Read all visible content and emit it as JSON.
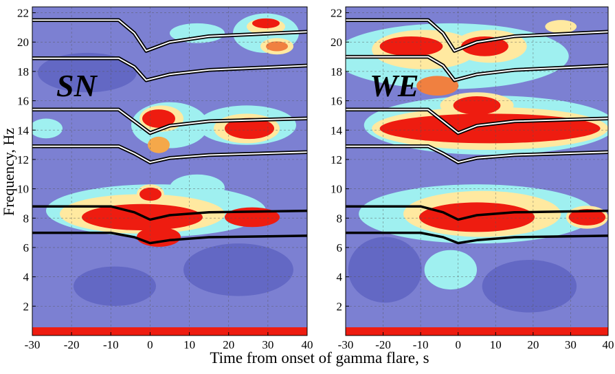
{
  "chart_data": [
    {
      "type": "line",
      "label": "SN",
      "xlim": [
        -30,
        40
      ],
      "ylim": [
        0,
        22.4
      ],
      "xticks": [
        -30,
        -20,
        -10,
        0,
        10,
        20,
        30,
        40
      ],
      "yticks": [
        2,
        4,
        6,
        8,
        10,
        12,
        14,
        16,
        18,
        20,
        22
      ],
      "grid": true,
      "series": [
        {
          "color": "#000000",
          "style": "double",
          "x": [
            -30,
            -8,
            -4,
            -1,
            5,
            15,
            40
          ],
          "values": [
            21.5,
            21.5,
            20.6,
            19.4,
            20.0,
            20.4,
            20.7
          ]
        },
        {
          "color": "#000000",
          "style": "double",
          "x": [
            -30,
            -8,
            -4,
            -1,
            5,
            15,
            40
          ],
          "values": [
            18.9,
            18.9,
            18.3,
            17.4,
            17.8,
            18.1,
            18.4
          ]
        },
        {
          "color": "#000000",
          "style": "double",
          "x": [
            -30,
            -8,
            -4,
            0,
            5,
            15,
            40
          ],
          "values": [
            15.4,
            15.4,
            14.6,
            13.8,
            14.3,
            14.6,
            14.8
          ]
        },
        {
          "color": "#000000",
          "style": "double",
          "x": [
            -30,
            -8,
            -4,
            0,
            5,
            15,
            40
          ],
          "values": [
            12.9,
            12.9,
            12.4,
            11.8,
            12.1,
            12.3,
            12.5
          ]
        },
        {
          "color": "#000000",
          "style": "solid",
          "x": [
            -30,
            -10,
            -4,
            0,
            5,
            15,
            40
          ],
          "values": [
            8.8,
            8.8,
            8.4,
            7.9,
            8.2,
            8.4,
            8.5
          ]
        },
        {
          "color": "#000000",
          "style": "solid",
          "x": [
            -30,
            -10,
            -4,
            0,
            5,
            15,
            40
          ],
          "values": [
            7.0,
            7.0,
            6.7,
            6.3,
            6.5,
            6.7,
            6.8
          ]
        }
      ]
    },
    {
      "type": "line",
      "label": "WE",
      "xlim": [
        -30,
        40
      ],
      "ylim": [
        0,
        22.4
      ],
      "xticks": [
        -30,
        -20,
        -10,
        0,
        10,
        20,
        30,
        40
      ],
      "yticks": [
        2,
        4,
        6,
        8,
        10,
        12,
        14,
        16,
        18,
        20,
        22
      ],
      "grid": true,
      "series": [
        {
          "color": "#000000",
          "style": "double",
          "x": [
            -30,
            -8,
            -4,
            -1,
            5,
            15,
            40
          ],
          "values": [
            21.5,
            21.5,
            20.6,
            19.4,
            20.0,
            20.4,
            20.7
          ]
        },
        {
          "color": "#000000",
          "style": "double",
          "x": [
            -30,
            -8,
            -4,
            -1,
            5,
            15,
            40
          ],
          "values": [
            19.0,
            19.0,
            18.4,
            17.4,
            17.8,
            18.1,
            18.4
          ]
        },
        {
          "color": "#000000",
          "style": "double",
          "x": [
            -30,
            -8,
            -4,
            0,
            5,
            15,
            40
          ],
          "values": [
            15.4,
            15.4,
            14.6,
            13.8,
            14.3,
            14.6,
            14.8
          ]
        },
        {
          "color": "#000000",
          "style": "double",
          "x": [
            -30,
            -8,
            -4,
            0,
            5,
            15,
            40
          ],
          "values": [
            12.9,
            12.9,
            12.4,
            11.8,
            12.1,
            12.3,
            12.5
          ]
        },
        {
          "color": "#000000",
          "style": "solid",
          "x": [
            -30,
            -10,
            -4,
            0,
            5,
            15,
            40
          ],
          "values": [
            8.8,
            8.8,
            8.4,
            7.9,
            8.2,
            8.4,
            8.5
          ]
        },
        {
          "color": "#000000",
          "style": "solid",
          "x": [
            -30,
            -10,
            -4,
            0,
            5,
            15,
            40
          ],
          "values": [
            7.0,
            7.0,
            6.7,
            6.3,
            6.5,
            6.7,
            6.8
          ]
        }
      ]
    }
  ],
  "xlabel": "Time from onset of gamma flare, s",
  "ylabel": "Frequency, Hz"
}
